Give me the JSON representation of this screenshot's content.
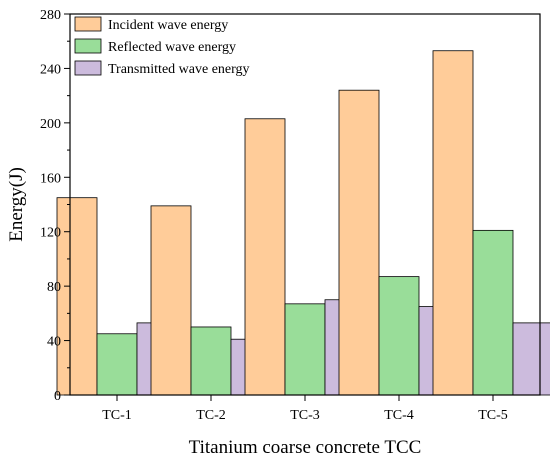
{
  "chart_data": {
    "type": "bar",
    "categories": [
      "TC-1",
      "TC-2",
      "TC-3",
      "TC-4",
      "TC-5"
    ],
    "series": [
      {
        "name": "Incident wave energy",
        "values": [
          145,
          139,
          203,
          224,
          253
        ],
        "color": "#FFCC99"
      },
      {
        "name": "Reflected wave energy",
        "values": [
          45,
          50,
          67,
          87,
          121
        ],
        "color": "#99DD99"
      },
      {
        "name": "Transmitted wave energy",
        "values": [
          53,
          41,
          70,
          65,
          53
        ],
        "color": "#CCBBDD"
      }
    ],
    "xlabel": "Titanium coarse concrete TCC",
    "ylabel": "Energy(J)",
    "ylim": [
      0,
      280
    ],
    "yticks": [
      0,
      40,
      80,
      120,
      160,
      200,
      240,
      280
    ],
    "grid": false,
    "legend_position": "top-left"
  }
}
